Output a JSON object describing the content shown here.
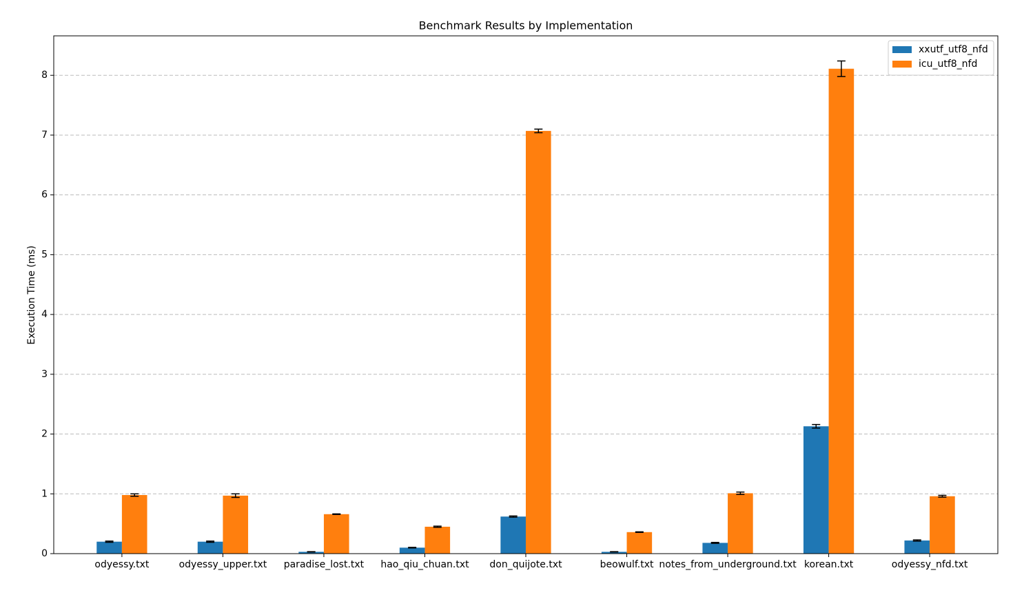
{
  "chart_data": {
    "type": "bar",
    "title": "Benchmark Results by Implementation",
    "y_label": "Execution Time (ms)",
    "categories": [
      "odyessy.txt",
      "odyessy_upper.txt",
      "paradise_lost.txt",
      "hao_qiu_chuan.txt",
      "don_quijote.txt",
      "beowulf.txt",
      "notes_from_underground.txt",
      "korean.txt",
      "odyessy_nfd.txt"
    ],
    "series": [
      {
        "name": "xxutf_utf8_nfd",
        "color": "#1f77b4",
        "values": [
          0.2,
          0.2,
          0.03,
          0.1,
          0.62,
          0.03,
          0.18,
          2.13,
          0.22
        ],
        "errors": [
          0.01,
          0.01,
          0.003,
          0.005,
          0.01,
          0.003,
          0.008,
          0.03,
          0.01
        ]
      },
      {
        "name": "icu_utf8_nfd",
        "color": "#ff7f0e",
        "values": [
          0.98,
          0.97,
          0.66,
          0.45,
          7.07,
          0.36,
          1.01,
          8.11,
          0.96
        ],
        "errors": [
          0.02,
          0.03,
          0.005,
          0.01,
          0.03,
          0.005,
          0.02,
          0.13,
          0.015
        ]
      }
    ],
    "ylim": [
      0,
      8.66
    ],
    "yticks": [
      0,
      1,
      2,
      3,
      4,
      5,
      6,
      7,
      8
    ],
    "grid": true,
    "legend": "upper right"
  }
}
